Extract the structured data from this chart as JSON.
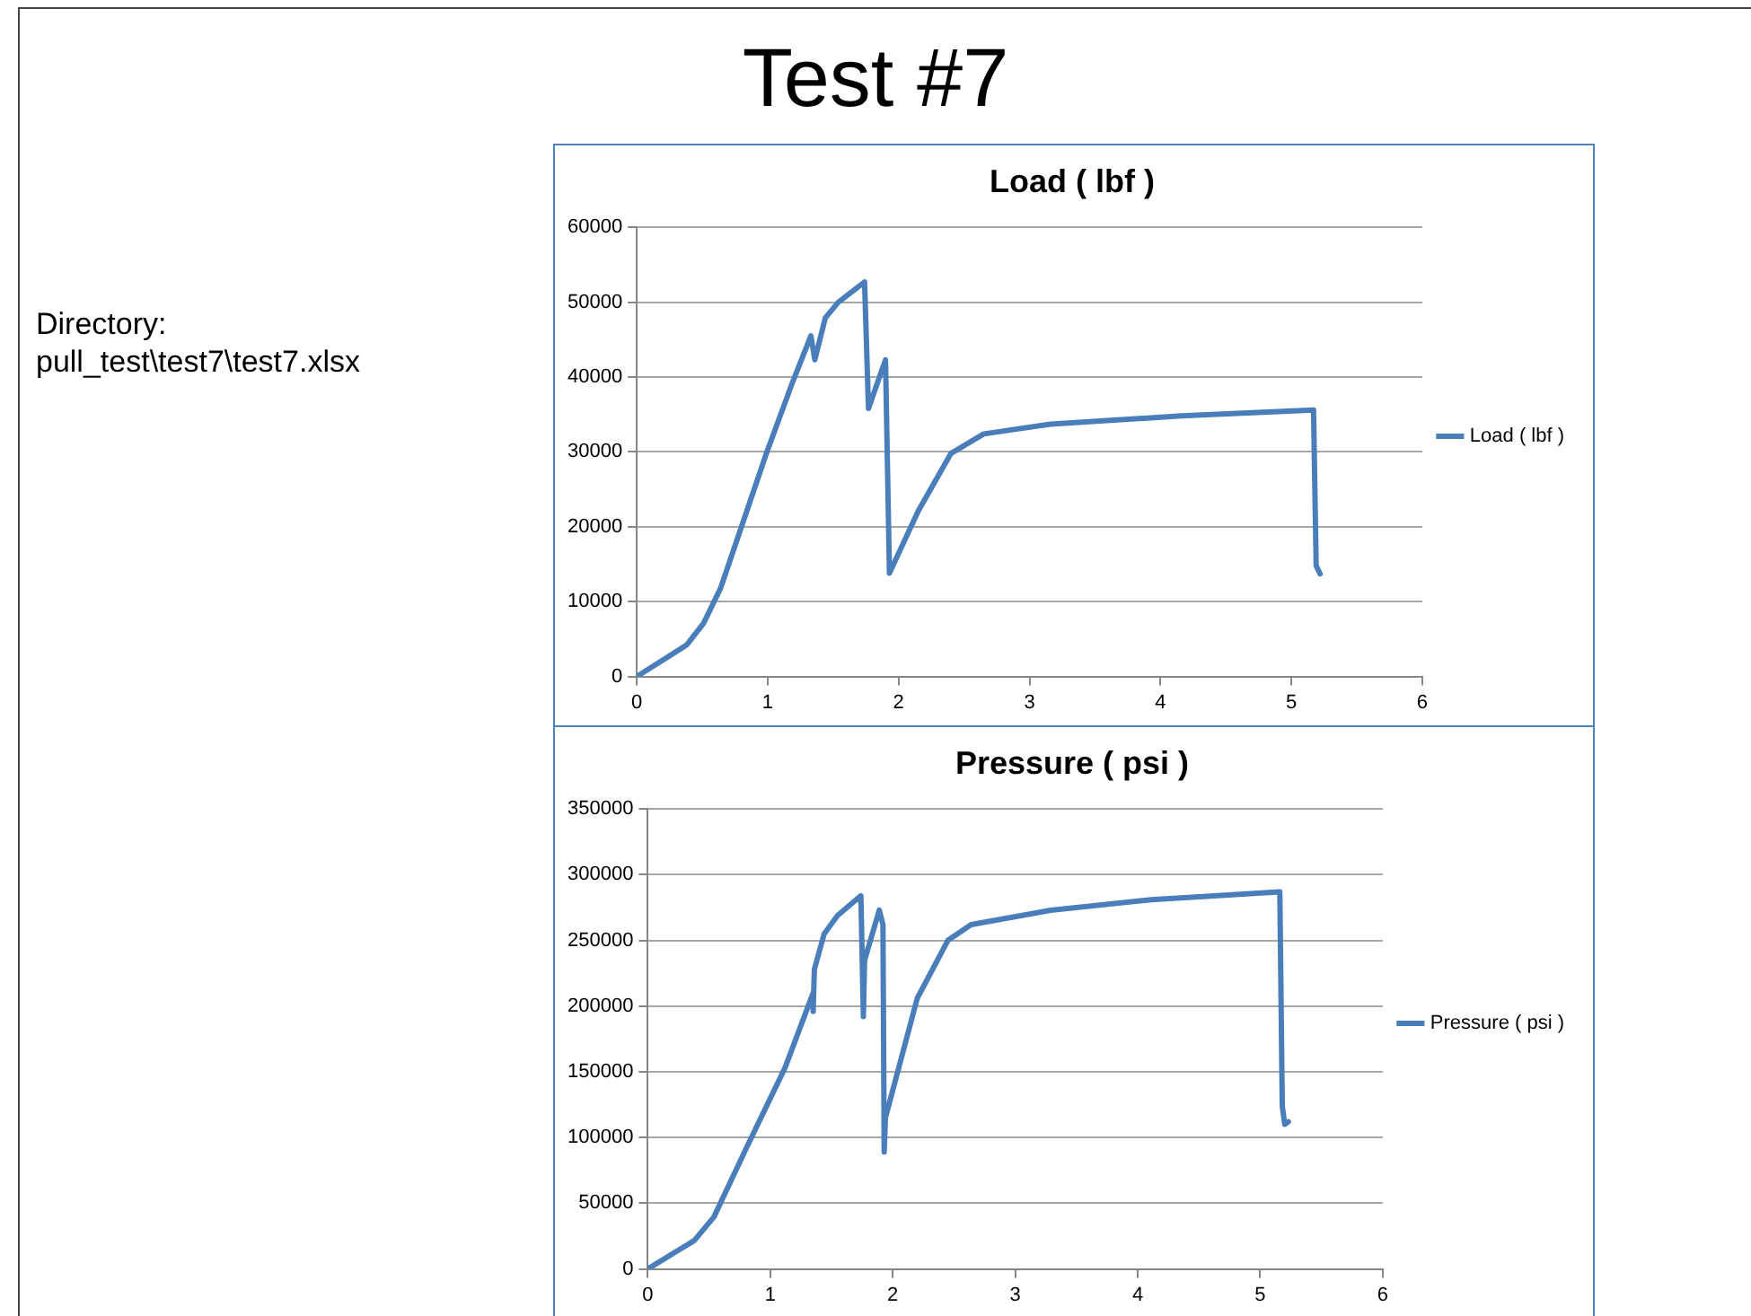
{
  "chart_data": [
    {
      "type": "line",
      "title": "Load ( lbf )",
      "annotations": [
        "Test #7",
        "Directory:\npull_test\\test7\\test7.xlsx"
      ],
      "xlim": [
        0,
        6
      ],
      "xticks": [
        0,
        1,
        2,
        3,
        4,
        5,
        6
      ],
      "ylim": [
        0,
        60000
      ],
      "yticks": [
        0,
        10000,
        20000,
        30000,
        40000,
        50000,
        60000
      ],
      "grid": "y",
      "legend": "right",
      "marker": "none",
      "line_style": "solid",
      "series": [
        {
          "name": "Load ( lbf )",
          "color": "#4a7ebb",
          "x": [
            0,
            0.38,
            0.51,
            0.64,
            0.99,
            1.19,
            1.33,
            1.36,
            1.44,
            1.54,
            1.74,
            1.77,
            1.9,
            1.93,
            2.15,
            2.4,
            2.65,
            3.16,
            4.16,
            5.17,
            5.19,
            5.22
          ],
          "values": [
            0,
            4200,
            7100,
            11800,
            29800,
            39300,
            45500,
            42300,
            47900,
            50000,
            52700,
            35800,
            42300,
            13800,
            22100,
            29800,
            32400,
            33700,
            34800,
            35600,
            14800,
            13700
          ]
        }
      ]
    },
    {
      "type": "line",
      "title": "Pressure ( psi )",
      "xlim": [
        0,
        6
      ],
      "xticks": [
        0,
        1,
        2,
        3,
        4,
        5,
        6
      ],
      "ylim": [
        0,
        350000
      ],
      "yticks": [
        0,
        50000,
        100000,
        150000,
        200000,
        250000,
        300000,
        350000
      ],
      "grid": "y",
      "legend": "right",
      "marker": "none",
      "line_style": "solid",
      "series": [
        {
          "name": "Pressure ( psi )",
          "color": "#4a7ebb",
          "x": [
            0,
            0.38,
            0.54,
            0.82,
            1.12,
            1.35,
            1.35,
            1.36,
            1.44,
            1.55,
            1.74,
            1.76,
            1.77,
            1.89,
            1.92,
            1.93,
            1.94,
            2.2,
            2.45,
            2.64,
            3.29,
            4.11,
            5.16,
            5.18,
            5.2,
            5.23
          ],
          "values": [
            0,
            21700,
            39600,
            95000,
            153000,
            210000,
            196000,
            228000,
            255000,
            269000,
            284000,
            192000,
            235000,
            273000,
            262000,
            89000,
            115000,
            206000,
            250000,
            262000,
            273000,
            281000,
            287000,
            124000,
            110000,
            112000
          ]
        }
      ]
    }
  ]
}
